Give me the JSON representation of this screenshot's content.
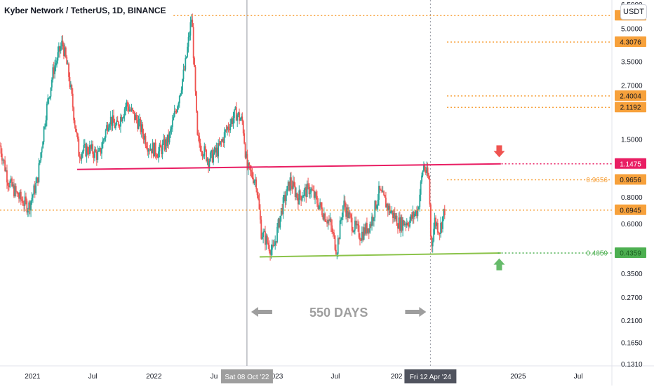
{
  "header": {
    "title": "Kyber Network / TetherUS, 1D, BINANCE",
    "currency": "USDT"
  },
  "chart_data": {
    "type": "candlestick",
    "yscale": "log",
    "ylim": [
      0.128,
      6.8
    ],
    "y_ticks": [
      "6.5000",
      "5.0000",
      "3.5000",
      "2.7000",
      "1.5000",
      "0.8000",
      "0.6000",
      "0.3500",
      "0.2700",
      "0.2100",
      "0.1650",
      "0.1310"
    ],
    "y_tick_values": [
      6.5,
      5.0,
      3.5,
      2.7,
      1.5,
      0.8,
      0.6,
      0.35,
      0.27,
      0.21,
      0.165,
      0.131
    ],
    "x_labels": [
      "2021",
      "Jul",
      "2022",
      "Ju",
      "2023",
      "Jul",
      "202",
      "2025",
      "Jul"
    ],
    "x_label_dates": [
      "2021-01-01",
      "2021-07-01",
      "2022-01-01",
      "2022-07-01",
      "2023-01-01",
      "2023-07-01",
      "2024-01-01",
      "2025-01-01",
      "2025-07-01"
    ],
    "x_range": [
      "2020-09-25",
      "2025-10-10"
    ],
    "crosshair_labels": [
      {
        "date": "2022-10-08",
        "text": "Sat 08 Oct '22"
      },
      {
        "date": "2024-04-12",
        "text": "Fri 12 Apr '24"
      }
    ],
    "price_levels": [
      {
        "value": 5.7428,
        "label": "5.7428",
        "color": "#f7a13b",
        "from_date": "2022-03-01"
      },
      {
        "value": 4.3076,
        "label": "4.3076",
        "color": "#f7a13b",
        "from_date": "2024-06-01"
      },
      {
        "value": 2.4004,
        "label": "2.4004",
        "color": "#f7a13b",
        "from_date": "2024-06-01"
      },
      {
        "value": 2.1192,
        "label": "2.1192",
        "color": "#f7a13b",
        "from_date": "2024-06-01"
      },
      {
        "value": 1.1475,
        "label": "1.1475",
        "color": "#e91e63",
        "from_date": "2024-11-01"
      },
      {
        "value": 0.9656,
        "label": "0.9656",
        "color": "#f7a13b",
        "from_date": "2024-06-01",
        "inline_label": "0.9656"
      },
      {
        "value": 0.6945,
        "label": "0.6945",
        "color": "#f7a13b",
        "from_date": "2020-09-25"
      },
      {
        "value": 0.4359,
        "label": "0.4359",
        "color": "#4caf50",
        "from_date": "2024-11-01",
        "inline_label": "0.4359"
      }
    ],
    "resistance_line": {
      "from": [
        "2021-05-15",
        1.08
      ],
      "to": [
        "2024-11-10",
        1.1475
      ],
      "color": "#e91e63"
    },
    "support_line": {
      "from": [
        "2022-11-15",
        0.418
      ],
      "to": [
        "2024-11-10",
        0.4359
      ],
      "color": "#8bc34a"
    },
    "annotation": {
      "text": "550 DAYS",
      "from_date": "2022-10-08",
      "to_date": "2024-04-12"
    },
    "arrows": [
      {
        "direction": "down",
        "date": "2024-11-05",
        "value": 1.3,
        "color": "#ef5350"
      },
      {
        "direction": "up",
        "date": "2024-11-05",
        "value": 0.39,
        "color": "#66bb6a"
      }
    ],
    "price_path": [
      [
        "2020-09-25",
        1.4
      ],
      [
        "2020-10-20",
        0.95
      ],
      [
        "2020-11-20",
        0.8
      ],
      [
        "2020-12-20",
        0.72
      ],
      [
        "2021-01-15",
        0.95
      ],
      [
        "2021-02-10",
        2.0
      ],
      [
        "2021-03-05",
        3.2
      ],
      [
        "2021-04-01",
        4.3
      ],
      [
        "2021-04-20",
        3.0
      ],
      [
        "2021-05-20",
        1.3
      ],
      [
        "2021-06-20",
        1.35
      ],
      [
        "2021-07-20",
        1.25
      ],
      [
        "2021-08-20",
        1.9
      ],
      [
        "2021-09-10",
        1.7
      ],
      [
        "2021-10-10",
        2.2
      ],
      [
        "2021-11-15",
        1.8
      ],
      [
        "2021-12-15",
        1.4
      ],
      [
        "2022-01-15",
        1.3
      ],
      [
        "2022-02-15",
        1.5
      ],
      [
        "2022-03-15",
        2.3
      ],
      [
        "2022-04-05",
        3.3
      ],
      [
        "2022-04-25",
        5.74
      ],
      [
        "2022-05-12",
        1.5
      ],
      [
        "2022-06-15",
        1.2
      ],
      [
        "2022-07-15",
        1.35
      ],
      [
        "2022-08-10",
        1.7
      ],
      [
        "2022-09-05",
        2.0
      ],
      [
        "2022-09-25",
        1.8
      ],
      [
        "2022-10-08",
        1.1
      ],
      [
        "2022-11-05",
        0.95
      ],
      [
        "2022-11-20",
        0.55
      ],
      [
        "2022-12-25",
        0.44
      ],
      [
        "2023-01-20",
        0.7
      ],
      [
        "2023-02-15",
        0.95
      ],
      [
        "2023-03-10",
        0.8
      ],
      [
        "2023-04-15",
        0.88
      ],
      [
        "2023-05-20",
        0.7
      ],
      [
        "2023-06-15",
        0.6
      ],
      [
        "2023-07-05",
        0.45
      ],
      [
        "2023-07-25",
        0.75
      ],
      [
        "2023-08-20",
        0.6
      ],
      [
        "2023-09-15",
        0.53
      ],
      [
        "2023-10-15",
        0.6
      ],
      [
        "2023-11-10",
        0.85
      ],
      [
        "2023-12-10",
        0.7
      ],
      [
        "2024-01-10",
        0.6
      ],
      [
        "2024-02-10",
        0.62
      ],
      [
        "2024-03-05",
        0.7
      ],
      [
        "2024-03-22",
        1.14
      ],
      [
        "2024-04-08",
        0.95
      ],
      [
        "2024-04-14",
        0.46
      ],
      [
        "2024-04-25",
        0.62
      ],
      [
        "2024-05-10",
        0.56
      ],
      [
        "2024-05-25",
        0.7
      ]
    ]
  }
}
